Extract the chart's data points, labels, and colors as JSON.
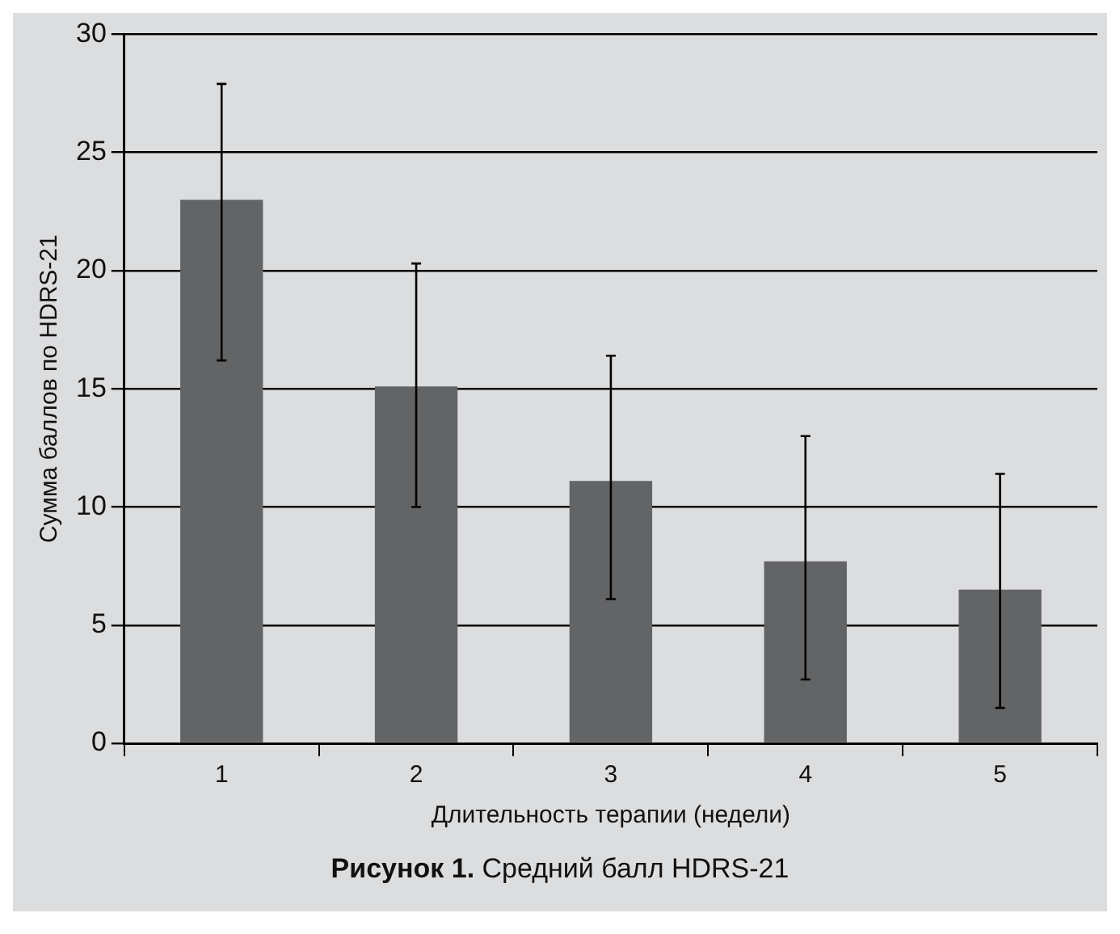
{
  "chart_data": {
    "type": "bar",
    "xlabel": "Длительность терапии (недели)",
    "ylabel": "Сумма баллов по HDRS-21",
    "categories": [
      "1",
      "2",
      "3",
      "4",
      "5"
    ],
    "values": [
      23,
      15.1,
      11.1,
      7.7,
      6.5
    ],
    "errors": [
      [
        16.2,
        27.9
      ],
      [
        10.0,
        20.3
      ],
      [
        6.1,
        16.4
      ],
      [
        2.7,
        13.0
      ],
      [
        1.5,
        11.4
      ]
    ],
    "color": "#636466",
    "ylim": [
      0,
      30
    ],
    "yticks": [
      0,
      5,
      10,
      15,
      20,
      25,
      30
    ],
    "grid": "y",
    "legend": false,
    "annotations": [
      "Рисунок 1. Средний балл HDRS-21"
    ]
  }
}
